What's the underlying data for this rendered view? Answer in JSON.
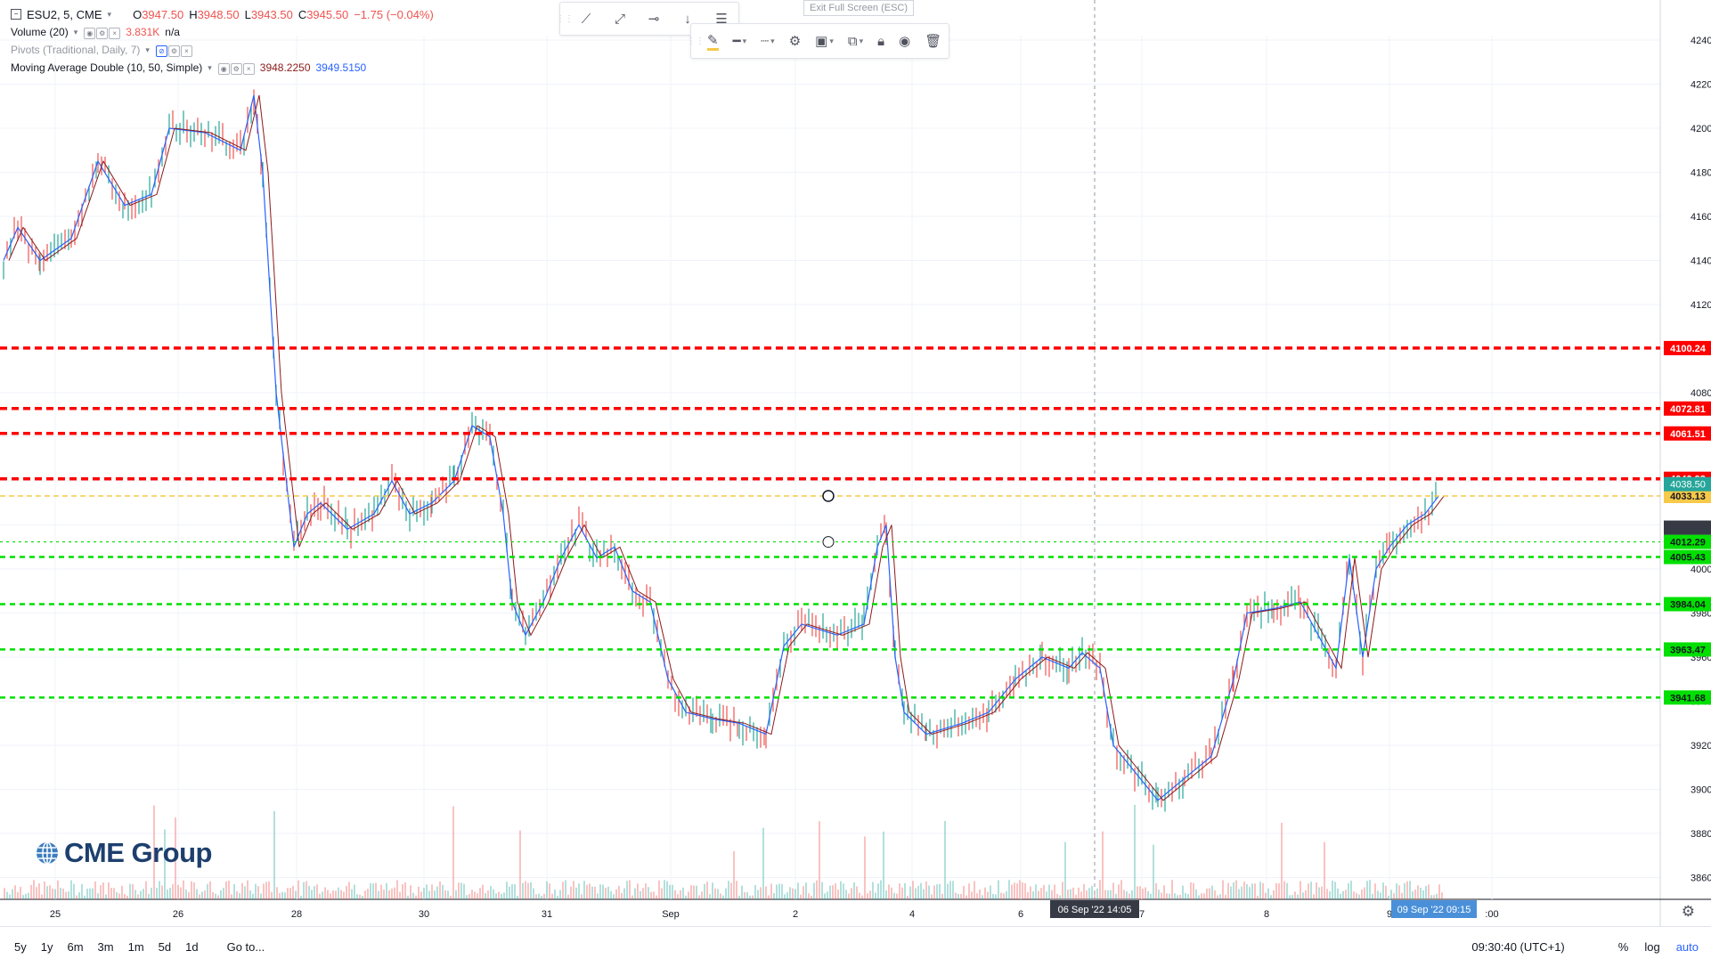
{
  "legend": {
    "symbol": "ESU2, 5, CME",
    "open_label": "O",
    "open": "3947.50",
    "high_label": "H",
    "high": "3948.50",
    "low_label": "L",
    "low": "3943.50",
    "close_label": "C",
    "close": "3945.50",
    "change": "−1.75 (−0.04%)",
    "volume_name": "Volume (20)",
    "volume_value": "3.831K",
    "volume_na": "n/a",
    "pivots_name": "Pivots (Traditional, Daily, 7)",
    "ma_name": "Moving Average Double (10, 50, Simple)",
    "ma_value_1": "3948.2250",
    "ma_value_2": "3949.5150",
    "ma_color_1": "#8b1a1a",
    "ma_color_2": "#2962ff"
  },
  "toolbar": {
    "exit_fullscreen": "Exit Full Screen (ESC)",
    "tools": [
      "trend-line-icon",
      "ray-icon",
      "horizontal-line-icon",
      "arrow-down-icon",
      "lines-menu-icon"
    ],
    "edit_tools": [
      "brush-icon",
      "line-style-icon",
      "dotted-line-icon",
      "gear-icon",
      "layers-icon",
      "copy-icon",
      "lock-icon",
      "eye-icon",
      "trash-icon"
    ]
  },
  "price_axis": {
    "ticks": [
      "4240.00",
      "4220.00",
      "4200.00",
      "4180.00",
      "4160.00",
      "4140.00",
      "4120.00",
      "4100.00",
      "4080.00",
      "4060.00",
      "4040.00",
      "4020.00",
      "4000.00",
      "3980.00",
      "3960.00",
      "3940.00",
      "3920.00",
      "3900.00",
      "3880.00",
      "3860.00"
    ]
  },
  "levels": {
    "resistance": [
      {
        "label": "4100.24",
        "value": 4100.24
      },
      {
        "label": "4072.81",
        "value": 4072.81
      },
      {
        "label": "4061.51",
        "value": 4061.51
      },
      {
        "label": "4040.93",
        "value": 4040.93
      }
    ],
    "support": [
      {
        "label": "4005.43",
        "value": 4005.43
      },
      {
        "label": "3984.04",
        "value": 3984.04
      },
      {
        "label": "3963.47",
        "value": 3963.47
      },
      {
        "label": "3941.68",
        "value": 3941.68
      }
    ],
    "yellow_line": {
      "label": "4033.13",
      "value": 4033.13
    },
    "green_dashed": {
      "label": "4012.29",
      "value": 4012.29
    },
    "last_price": {
      "label": "4038.50",
      "value": 4038.5
    },
    "colors": {
      "resistance": "#ff0000",
      "support": "#00e000",
      "yellow": "#f7c948",
      "last": "#26a69a",
      "crosshair": "#363a45"
    }
  },
  "time_axis": {
    "labels": [
      "25",
      "26",
      "28",
      "30",
      "31",
      "Sep",
      "2",
      "4",
      "6",
      "7",
      "8",
      "9",
      ":00"
    ],
    "crosshair_time": "06 Sep '22   14:05",
    "last_time": "09 Sep '22   09:15"
  },
  "bottom_bar": {
    "ranges": [
      "5y",
      "1y",
      "6m",
      "3m",
      "1m",
      "5d",
      "1d"
    ],
    "goto": "Go to...",
    "clock": "09:30:40 (UTC+1)",
    "percent": "%",
    "log": "log",
    "auto": "auto"
  },
  "watermark": "CME Group",
  "chart_data": {
    "type": "line",
    "title": "ESU2, 5, CME",
    "xlabel": "",
    "ylabel": "",
    "ylim": [
      3850,
      4250
    ],
    "x": [
      "25",
      "26",
      "28",
      "30",
      "31",
      "Sep",
      "2",
      "4",
      "6",
      "7",
      "8",
      "9"
    ],
    "series": [
      {
        "name": "ESU2",
        "values": [
          4140,
          4195,
          4020,
          4025,
          3975,
          3995,
          3930,
          3925,
          3960,
          3890,
          3985,
          4030
        ]
      }
    ]
  }
}
